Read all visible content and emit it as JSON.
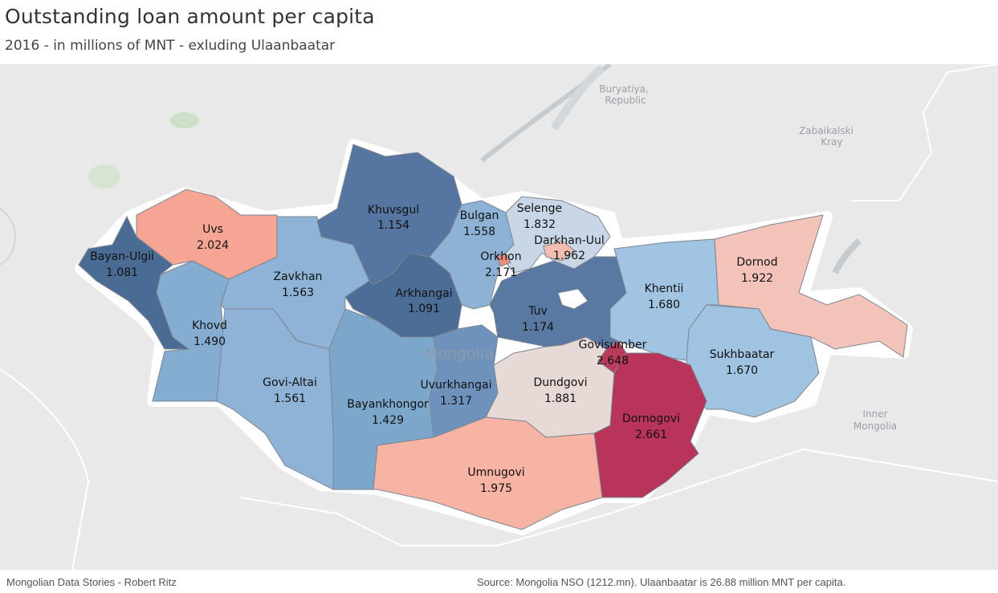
{
  "title": "Outstanding loan amount per capita",
  "subtitle": "2016 - in millions of MNT - exluding Ulaanbaatar",
  "footer": {
    "left": "Mongolian Data Stories - Robert Ritz",
    "right": "Source: Mongolia NSO (1212.mn). Ulaanbaatar is 26.88 million MNT per capita."
  },
  "map_labels": {
    "country": "Mongolia",
    "buryatiya_1": "Buryatiya,",
    "buryatiya_2": "Republic",
    "zabaikalski_1": "Zabaikalski",
    "zabaikalski_2": "Kray",
    "inner_1": "Inner",
    "inner_2": "Mongolia"
  },
  "colors": {
    "background": "#e9e9e9",
    "low": "#4a6b94",
    "mid": "#dfe3e8",
    "high": "#b8345a"
  },
  "chart_data": {
    "type": "choropleth",
    "title": "Outstanding loan amount per capita",
    "subtitle": "2016 - in millions of MNT - exluding Ulaanbaatar",
    "regions": [
      {
        "name": "Bayan-Ulgii",
        "value": "1.081",
        "color": "#4a6b94"
      },
      {
        "name": "Uvs",
        "value": "2.024",
        "color": "#f6a595"
      },
      {
        "name": "Khovd",
        "value": "1.490",
        "color": "#85acd1"
      },
      {
        "name": "Zavkhan",
        "value": "1.563",
        "color": "#8eb3d6"
      },
      {
        "name": "Khuvsgul",
        "value": "1.154",
        "color": "#5675a0"
      },
      {
        "name": "Arkhangai",
        "value": "1.091",
        "color": "#4c6d96"
      },
      {
        "name": "Bulgan",
        "value": "1.558",
        "color": "#8db2d5"
      },
      {
        "name": "Selenge",
        "value": "1.832",
        "color": "#c8d6e5"
      },
      {
        "name": "Darkhan-Uul",
        "value": "1.962",
        "color": "#f4bcaf"
      },
      {
        "name": "Orkhon",
        "value": "2.171",
        "color": "#ee8e7f"
      },
      {
        "name": "Govi-Altai",
        "value": "1.561",
        "color": "#8eb3d6"
      },
      {
        "name": "Bayankhongor",
        "value": "1.429",
        "color": "#7da6cb"
      },
      {
        "name": "Uvurkhangai",
        "value": "1.317",
        "color": "#6f92bc"
      },
      {
        "name": "Tuv",
        "value": "1.174",
        "color": "#5978a2"
      },
      {
        "name": "Khentii",
        "value": "1.680",
        "color": "#a0c4e2"
      },
      {
        "name": "Dornod",
        "value": "1.922",
        "color": "#f3c2b8"
      },
      {
        "name": "Sukhbaatar",
        "value": "1.670",
        "color": "#9fc3e1"
      },
      {
        "name": "Govisumber",
        "value": "2.648",
        "color": "#bb3b5d"
      },
      {
        "name": "Dundgovi",
        "value": "1.881",
        "color": "#e7d9d6"
      },
      {
        "name": "Dornogovi",
        "value": "2.661",
        "color": "#b8345a"
      },
      {
        "name": "Umnugovi",
        "value": "1.975",
        "color": "#f7b3a3"
      }
    ]
  }
}
